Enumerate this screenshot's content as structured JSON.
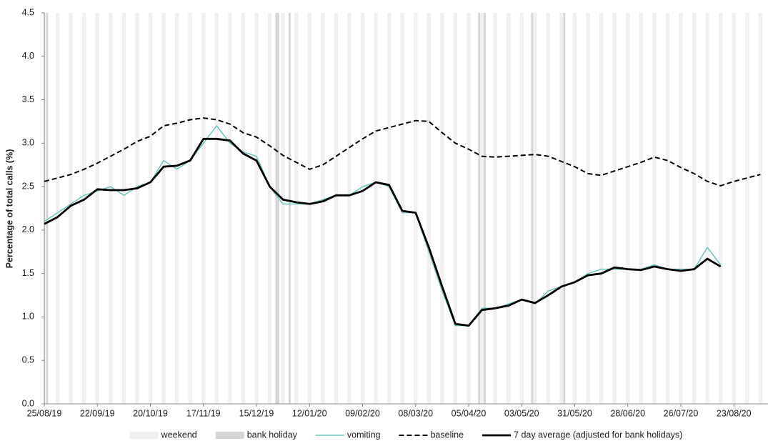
{
  "chart_data": {
    "type": "line",
    "y_label": "Percentage of total calls (%)",
    "x": [
      "25/08/19",
      "01/09/19",
      "08/09/19",
      "15/09/19",
      "22/09/19",
      "29/09/19",
      "06/10/19",
      "13/10/19",
      "20/10/19",
      "27/10/19",
      "03/11/19",
      "10/11/19",
      "17/11/19",
      "24/11/19",
      "01/12/19",
      "08/12/19",
      "15/12/19",
      "22/12/19",
      "29/12/19",
      "05/01/20",
      "12/01/20",
      "19/01/20",
      "26/01/20",
      "02/02/20",
      "09/02/20",
      "16/02/20",
      "23/02/20",
      "01/03/20",
      "08/03/20",
      "15/03/20",
      "22/03/20",
      "29/03/20",
      "05/04/20",
      "12/04/20",
      "19/04/20",
      "26/04/20",
      "03/05/20",
      "10/05/20",
      "17/05/20",
      "24/05/20",
      "31/05/20",
      "07/06/20",
      "14/06/20",
      "21/06/20",
      "28/06/20",
      "05/07/20",
      "12/07/20",
      "19/07/20",
      "26/07/20",
      "02/08/20",
      "09/08/20",
      "16/08/20",
      "23/08/20",
      "30/08/20",
      "06/09/20"
    ],
    "series": [
      {
        "name": "vomiting",
        "color": "#6cc5bd",
        "width": 1.5,
        "dash": false,
        "values": [
          2.1,
          2.2,
          2.3,
          2.4,
          2.45,
          2.5,
          2.4,
          2.5,
          2.55,
          2.8,
          2.7,
          2.8,
          3.0,
          3.2,
          3.0,
          2.9,
          2.85,
          2.5,
          2.3,
          2.3,
          2.3,
          2.35,
          2.4,
          2.4,
          2.5,
          2.55,
          2.5,
          2.2,
          2.2,
          1.75,
          1.3,
          0.9,
          0.9,
          1.1,
          1.1,
          1.15,
          1.2,
          1.15,
          1.3,
          1.35,
          1.4,
          1.5,
          1.55,
          1.55,
          1.55,
          1.55,
          1.6,
          1.55,
          1.55,
          1.55,
          1.8,
          1.6,
          null,
          null,
          null
        ]
      },
      {
        "name": "baseline",
        "color": "#000000",
        "width": 2,
        "dash": true,
        "values": [
          2.56,
          2.6,
          2.64,
          2.7,
          2.77,
          2.85,
          2.93,
          3.02,
          3.08,
          3.2,
          3.23,
          3.27,
          3.29,
          3.27,
          3.22,
          3.12,
          3.07,
          2.97,
          2.86,
          2.78,
          2.7,
          2.75,
          2.85,
          2.95,
          3.05,
          3.14,
          3.18,
          3.22,
          3.26,
          3.25,
          3.12,
          3.0,
          2.93,
          2.85,
          2.84,
          2.85,
          2.86,
          2.87,
          2.85,
          2.79,
          2.73,
          2.65,
          2.63,
          2.68,
          2.73,
          2.78,
          2.84,
          2.8,
          2.72,
          2.65,
          2.56,
          2.51,
          2.56,
          2.6,
          2.64
        ]
      },
      {
        "name": "7 day average (adjusted for bank holidays)",
        "color": "#000000",
        "width": 2.8,
        "dash": false,
        "values": [
          2.07,
          2.15,
          2.28,
          2.35,
          2.47,
          2.46,
          2.46,
          2.48,
          2.55,
          2.73,
          2.74,
          2.8,
          3.05,
          3.05,
          3.03,
          2.88,
          2.8,
          2.5,
          2.35,
          2.32,
          2.3,
          2.33,
          2.4,
          2.4,
          2.45,
          2.55,
          2.52,
          2.22,
          2.2,
          1.8,
          1.35,
          0.92,
          0.9,
          1.08,
          1.1,
          1.13,
          1.2,
          1.16,
          1.25,
          1.35,
          1.4,
          1.48,
          1.5,
          1.57,
          1.55,
          1.54,
          1.58,
          1.55,
          1.53,
          1.55,
          1.67,
          1.58,
          null,
          null,
          null
        ]
      }
    ],
    "shading": [
      {
        "name": "weekend",
        "color": "#f0f0f0",
        "weekdays": [
          0,
          6
        ]
      },
      {
        "name": "bank holiday",
        "color": "#d4d4d4",
        "dates": [
          "26/08/19",
          "25/12/19",
          "26/12/19",
          "01/01/20",
          "10/04/20",
          "13/04/20",
          "08/05/20",
          "25/05/20"
        ]
      }
    ],
    "xlim": [
      "25/08/19",
      "10/09/20"
    ],
    "xticks": [
      "25/08/19",
      "22/09/19",
      "20/10/19",
      "17/11/19",
      "15/12/19",
      "12/01/20",
      "09/02/20",
      "08/03/20",
      "05/04/20",
      "03/05/20",
      "31/05/20",
      "28/06/20",
      "26/07/20",
      "23/08/20"
    ],
    "ylim": [
      0,
      4.5
    ],
    "yticks": [
      {
        "value": 0,
        "label": "0.0"
      },
      0.5,
      {
        "value": 1,
        "label": "1.0"
      },
      1.5,
      {
        "value": 2,
        "label": "2.0"
      },
      2.5,
      {
        "value": 3,
        "label": "3.0"
      },
      3.5,
      {
        "value": 4,
        "label": "4.0"
      },
      4.5
    ],
    "legend": "bottom"
  }
}
